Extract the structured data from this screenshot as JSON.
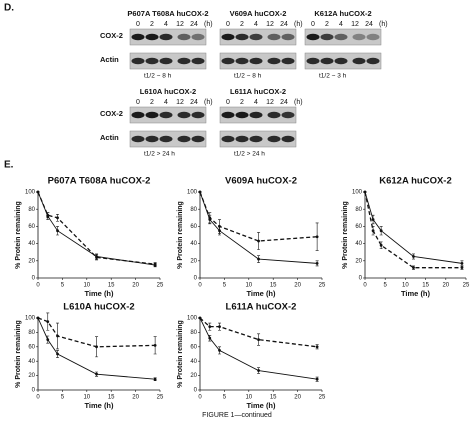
{
  "blots": {
    "label": "D.",
    "unit": "(h)",
    "rows": [
      "COX-2",
      "Actin"
    ],
    "timepoints": [
      "0",
      "2",
      "4",
      "12",
      "24"
    ],
    "panels": [
      {
        "title": "P607A T608A huCOX-2",
        "half_life": "t1/2 ~ 8 h"
      },
      {
        "title": "V609A huCOX-2",
        "half_life": "t1/2 ~ 8 h"
      },
      {
        "title": "K612A huCOX-2",
        "half_life": "t1/2 ~ 3 h"
      },
      {
        "title": "L610A huCOX-2",
        "half_life": "t1/2 > 24 h"
      },
      {
        "title": "L611A huCOX-2",
        "half_life": "t1/2 > 24 h"
      }
    ]
  },
  "panel_e_label": "E.",
  "chart_data": [
    {
      "type": "line",
      "title": "P607A T608A huCOX-2",
      "xlabel": "Time (h)",
      "ylabel": "% Protein remaining",
      "x": [
        0,
        2,
        4,
        12,
        24
      ],
      "xlim": [
        0,
        25
      ],
      "xticks": [
        0,
        5,
        10,
        15,
        20,
        25
      ],
      "ylim": [
        0,
        100
      ],
      "yticks": [
        0,
        20,
        40,
        60,
        80,
        100
      ],
      "series": [
        {
          "color": "#111111",
          "dash": false,
          "values": [
            100,
            72,
            55,
            25,
            15
          ],
          "errors": [
            0,
            4,
            5,
            3,
            2
          ]
        },
        {
          "color": "#111111",
          "dash": true,
          "values": [
            100,
            73,
            70,
            24,
            16
          ],
          "errors": [
            0,
            3,
            4,
            3,
            2
          ]
        }
      ]
    },
    {
      "type": "line",
      "title": "V609A huCOX-2",
      "xlabel": "Time (h)",
      "ylabel": "% Protein remaining",
      "x": [
        0,
        2,
        4,
        12,
        24
      ],
      "xlim": [
        0,
        25
      ],
      "xticks": [
        0,
        5,
        10,
        15,
        20,
        25
      ],
      "ylim": [
        0,
        100
      ],
      "yticks": [
        0,
        20,
        40,
        60,
        80,
        100
      ],
      "series": [
        {
          "color": "#111111",
          "dash": false,
          "values": [
            100,
            68,
            55,
            22,
            17
          ],
          "errors": [
            0,
            5,
            5,
            4,
            3
          ]
        },
        {
          "color": "#111111",
          "dash": true,
          "values": [
            100,
            70,
            60,
            43,
            48
          ],
          "errors": [
            0,
            6,
            8,
            10,
            16
          ]
        }
      ]
    },
    {
      "type": "line",
      "title": "K612A huCOX-2",
      "xlabel": "Time (h)",
      "ylabel": "% Protein remaining",
      "x": [
        0,
        2,
        4,
        12,
        24
      ],
      "xlim": [
        0,
        25
      ],
      "xticks": [
        0,
        5,
        10,
        15,
        20,
        25
      ],
      "ylim": [
        0,
        100
      ],
      "yticks": [
        0,
        20,
        40,
        60,
        80,
        100
      ],
      "series": [
        {
          "color": "#111111",
          "dash": false,
          "values": [
            100,
            68,
            55,
            25,
            17
          ],
          "errors": [
            0,
            5,
            5,
            3,
            3
          ]
        },
        {
          "color": "#111111",
          "dash": true,
          "values": [
            100,
            55,
            38,
            12,
            12
          ],
          "errors": [
            0,
            5,
            4,
            2,
            2
          ]
        }
      ]
    },
    {
      "type": "line",
      "title": "L610A huCOX-2",
      "xlabel": "Time (h)",
      "ylabel": "% Protein remaining",
      "x": [
        0,
        2,
        4,
        12,
        24
      ],
      "xlim": [
        0,
        25
      ],
      "xticks": [
        0,
        5,
        10,
        15,
        20,
        25
      ],
      "ylim": [
        0,
        100
      ],
      "yticks": [
        0,
        20,
        40,
        60,
        80,
        100
      ],
      "series": [
        {
          "color": "#111111",
          "dash": false,
          "values": [
            100,
            70,
            50,
            22,
            15
          ],
          "errors": [
            0,
            5,
            5,
            3,
            2
          ]
        },
        {
          "color": "#111111",
          "dash": true,
          "values": [
            100,
            95,
            75,
            60,
            62
          ],
          "errors": [
            0,
            12,
            18,
            14,
            12
          ]
        }
      ]
    },
    {
      "type": "line",
      "title": "L611A huCOX-2",
      "xlabel": "Time (h)",
      "ylabel": "% Protein remaining",
      "x": [
        0,
        2,
        4,
        12,
        24
      ],
      "xlim": [
        0,
        25
      ],
      "xticks": [
        0,
        5,
        10,
        15,
        20,
        25
      ],
      "ylim": [
        0,
        100
      ],
      "yticks": [
        0,
        20,
        40,
        60,
        80,
        100
      ],
      "series": [
        {
          "color": "#111111",
          "dash": false,
          "values": [
            100,
            72,
            55,
            27,
            15
          ],
          "errors": [
            0,
            4,
            5,
            4,
            3
          ]
        },
        {
          "color": "#111111",
          "dash": true,
          "values": [
            100,
            88,
            88,
            70,
            60
          ],
          "errors": [
            0,
            5,
            5,
            8,
            3
          ]
        }
      ]
    }
  ],
  "caption": "FIGURE 1—continued"
}
